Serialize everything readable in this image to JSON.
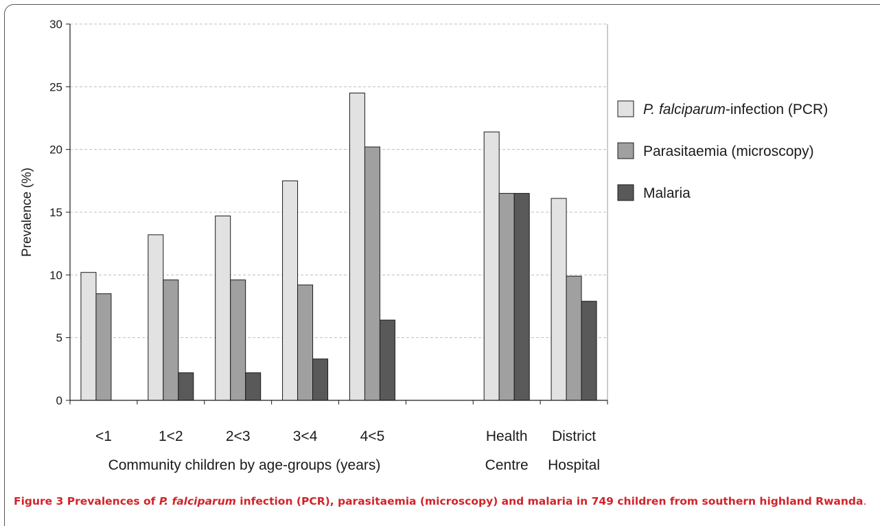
{
  "chart_data": {
    "type": "bar",
    "categories": [
      {
        "lines": [
          "<1"
        ]
      },
      {
        "lines": [
          "1<2"
        ]
      },
      {
        "lines": [
          "2<3"
        ]
      },
      {
        "lines": [
          "3<4"
        ]
      },
      {
        "lines": [
          "4<5"
        ]
      },
      {
        "lines": [
          ""
        ]
      },
      {
        "lines": [
          "Health",
          "Centre"
        ]
      },
      {
        "lines": [
          "District",
          "Hospital"
        ]
      }
    ],
    "series": [
      {
        "name_pre": "P. falciparum",
        "name_post": "-infection (PCR)",
        "color": "#e2e2e2",
        "values": [
          10.2,
          13.2,
          14.7,
          17.5,
          24.5,
          null,
          21.4,
          16.1
        ]
      },
      {
        "name": "Parasitaemia (microscopy)",
        "color": "#a0a0a0",
        "values": [
          8.5,
          9.6,
          9.6,
          9.2,
          20.2,
          null,
          16.5,
          9.9
        ]
      },
      {
        "name": "Malaria",
        "color": "#595959",
        "values": [
          null,
          2.2,
          2.2,
          3.3,
          6.4,
          null,
          16.5,
          7.9
        ]
      }
    ],
    "ylabel": "Prevalence (%)",
    "xlabel": "Community children by age-groups (years)",
    "ylim": [
      0,
      30
    ],
    "yticks": [
      0,
      5,
      10,
      15,
      20,
      25,
      30
    ],
    "grid": true,
    "legend": "right"
  },
  "caption": {
    "label": "Figure 3",
    "pre": " Prevalences of ",
    "italic": "P. falciparum",
    "post": " infection (PCR), parasitaemia (microscopy) and malaria in 749 children from southern highland Rwanda",
    "end": "."
  }
}
